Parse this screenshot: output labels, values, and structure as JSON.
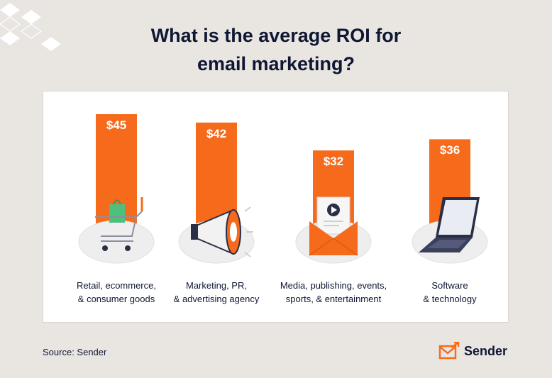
{
  "title_lines": [
    "What is the average ROI for",
    "email marketing?"
  ],
  "source": "Source: Sender",
  "brand": {
    "name": "Sender",
    "icon": "envelope-arrow-icon"
  },
  "colors": {
    "bar": "#f66a1b",
    "text": "#0f1733",
    "background": "#e9e5e1",
    "panel": "#ffffff"
  },
  "chart_data": {
    "type": "bar",
    "title": "What is the average ROI for email marketing?",
    "categories": [
      [
        "Retail, ecommerce,",
        "& consumer goods"
      ],
      [
        "Marketing, PR,",
        "& advertising agency"
      ],
      [
        "Media, publishing, events,",
        "sports, & entertainment"
      ],
      [
        "Software",
        "& technology"
      ]
    ],
    "values": [
      45,
      42,
      32,
      36
    ],
    "value_labels": [
      "$45",
      "$42",
      "$32",
      "$36"
    ],
    "icons": [
      "shopping-cart-icon",
      "megaphone-icon",
      "envelope-play-icon",
      "laptop-icon"
    ],
    "ylim": [
      0,
      45
    ],
    "grid": false,
    "legend": "none"
  }
}
